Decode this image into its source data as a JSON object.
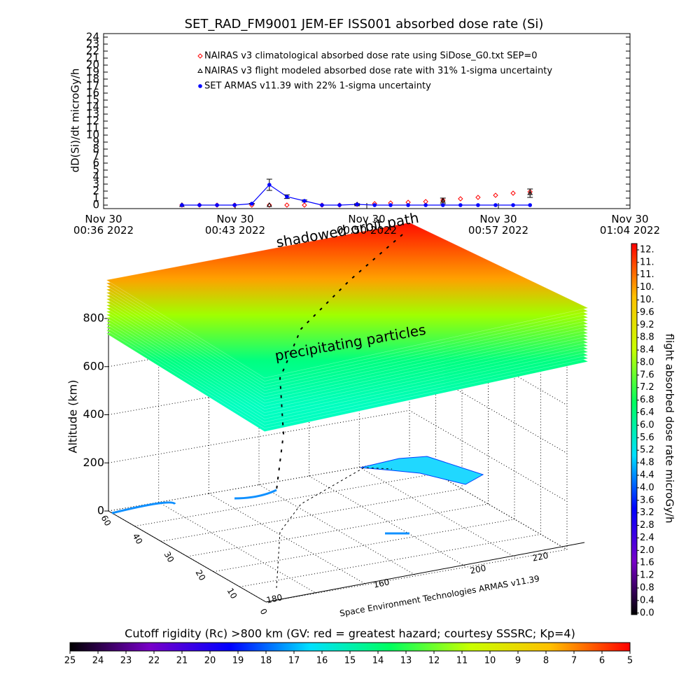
{
  "chart_data": [
    {
      "type": "line",
      "title": "SET_RAD_FM9001  JEM-EF ISS001 absorbed dose rate (Si)",
      "ylabel": "dD(Si)/dt microGy/h",
      "xlim": [
        "2022-11-30T00:36:00",
        "2022-11-30T01:04:00"
      ],
      "xticks": [
        {
          "value": "2022-11-30T00:36:00",
          "label": "Nov 30\n00:36 2022"
        },
        {
          "value": "2022-11-30T00:43:00",
          "label": "Nov 30\n00:43 2022"
        },
        {
          "value": "2022-11-30T00:50:00",
          "label": "Nov 30\n00:50 2022"
        },
        {
          "value": "2022-11-30T00:57:00",
          "label": "Nov 30\n00:57 2022"
        },
        {
          "value": "2022-11-30T01:04:00",
          "label": "Nov 30\n01:04 2022"
        }
      ],
      "ylim": [
        -0.5,
        24.5
      ],
      "yticks": [
        0,
        1,
        2,
        3,
        4,
        5,
        6,
        7,
        8,
        9,
        10,
        11,
        12,
        13,
        14,
        15,
        16,
        17,
        18,
        19,
        20,
        21,
        22,
        23,
        24
      ],
      "series": [
        {
          "name": "NAIRAS v3 climatological absorbed dose rate using SiDose_G0.txt SEP=0",
          "color": "#ff0000",
          "marker": "diamond",
          "x": [
            "2022-11-30T00:40:10",
            "2022-11-30T00:41:06",
            "2022-11-30T00:42:02",
            "2022-11-30T00:42:58",
            "2022-11-30T00:43:53",
            "2022-11-30T00:44:49",
            "2022-11-30T00:45:45",
            "2022-11-30T00:46:41",
            "2022-11-30T00:47:37",
            "2022-11-30T00:48:33",
            "2022-11-30T00:49:29",
            "2022-11-30T00:50:25",
            "2022-11-30T00:51:16",
            "2022-11-30T00:52:12",
            "2022-11-30T00:53:08",
            "2022-11-30T00:54:03",
            "2022-11-30T00:54:59",
            "2022-11-30T00:55:55",
            "2022-11-30T00:56:51",
            "2022-11-30T00:57:47",
            "2022-11-30T00:58:41"
          ],
          "values": [
            0,
            0,
            0,
            0,
            0,
            0,
            0,
            0,
            0,
            0,
            0.1,
            0.2,
            0.3,
            0.4,
            0.5,
            0.7,
            0.9,
            1.1,
            1.4,
            1.7,
            1.9
          ]
        },
        {
          "name": "NAIRAS v3 flight modeled absorbed dose rate with 31% 1-sigma uncertainty",
          "color": "#000000",
          "marker": "triangle",
          "x": [
            "2022-11-30T00:40:10",
            "2022-11-30T00:44:49",
            "2022-11-30T00:49:29",
            "2022-11-30T00:54:03",
            "2022-11-30T00:58:41"
          ],
          "values": [
            0,
            0,
            0.1,
            0.6,
            1.7
          ],
          "errors": [
            0,
            0,
            0.1,
            0.4,
            0.6
          ]
        },
        {
          "name": "SET ARMAS v11.39 with 22% 1-sigma uncertainty",
          "color": "#0000ff",
          "marker": "circle",
          "x": [
            "2022-11-30T00:40:10",
            "2022-11-30T00:41:06",
            "2022-11-30T00:42:02",
            "2022-11-30T00:42:58",
            "2022-11-30T00:43:53",
            "2022-11-30T00:44:49",
            "2022-11-30T00:45:45",
            "2022-11-30T00:46:41",
            "2022-11-30T00:47:37",
            "2022-11-30T00:48:33",
            "2022-11-30T00:49:29",
            "2022-11-30T00:50:25",
            "2022-11-30T00:51:16",
            "2022-11-30T00:52:12",
            "2022-11-30T00:53:08",
            "2022-11-30T00:54:03",
            "2022-11-30T00:54:59",
            "2022-11-30T00:55:55",
            "2022-11-30T00:56:51",
            "2022-11-30T00:57:47",
            "2022-11-30T00:58:41"
          ],
          "values": [
            0,
            0,
            0,
            0,
            0.2,
            2.9,
            1.2,
            0.6,
            0,
            0,
            0.1,
            0,
            0,
            0,
            0,
            0,
            0,
            0,
            0,
            0,
            0
          ],
          "errors": [
            0,
            0,
            0,
            0,
            0.04,
            0.8,
            0.26,
            0.13,
            0,
            0,
            0.1,
            0,
            0,
            0,
            0,
            0,
            0,
            0,
            0,
            0,
            0
          ]
        }
      ]
    },
    {
      "type": "surface3d",
      "zlabel": "Altitude (km)",
      "zlim": [
        0,
        800
      ],
      "zticks": [
        0,
        200,
        400,
        600,
        800
      ],
      "lat_labels": [
        "60",
        "40",
        "30",
        "20",
        "10",
        "0"
      ],
      "lon_labels": [
        "180",
        "160",
        "200",
        "220"
      ],
      "annotations": [
        "shadowed orbit path",
        "precipitating particles"
      ],
      "caption": "Space Environment Technologies ARMAS v11.39"
    },
    {
      "type": "colorbar",
      "orientation": "vertical",
      "label": "flight absorbed dose rate microGy/h",
      "colormap": [
        "#000000",
        "#7800c8",
        "#0000ff",
        "#00e0ff",
        "#00ff60",
        "#c8ff00",
        "#ffc000",
        "#ff0000"
      ],
      "lim": [
        -0.05,
        11.8
      ],
      "ticks": [
        {
          "value": 0,
          "label": "0.0"
        },
        0.4,
        0.8,
        1.2,
        1.6,
        {
          "value": 2,
          "label": "2.0"
        },
        2.4,
        2.8,
        3.2,
        3.6,
        {
          "value": 4,
          "label": "4.0"
        },
        4.4,
        4.8,
        5.2,
        5.6,
        {
          "value": 6,
          "label": "6.0"
        },
        6.4,
        6.8,
        7.2,
        7.6,
        {
          "value": 8,
          "label": "8.0"
        },
        8.4,
        8.8,
        9.2,
        9.6,
        {
          "value": 10,
          "label": "10."
        },
        {
          "value": 10.4,
          "label": "10."
        },
        {
          "value": 10.8,
          "label": "11."
        },
        {
          "value": 11.2,
          "label": "11."
        },
        {
          "value": 11.6,
          "label": "12."
        }
      ]
    },
    {
      "type": "colorbar",
      "orientation": "horizontal",
      "title": "Cutoff rigidity (Rc) >800 km (GV: red = greatest hazard; courtesy SSSRC; Kp=4)",
      "colormap": [
        "#000000",
        "#7800c8",
        "#0000ff",
        "#00e0ff",
        "#00ff60",
        "#c8ff00",
        "#ffc000",
        "#ff0000"
      ],
      "lim": [
        25,
        5
      ],
      "ticks": [
        25,
        24,
        23,
        22,
        21,
        20,
        19,
        18,
        17,
        16,
        15,
        14,
        13,
        12,
        11,
        10,
        9,
        8,
        7,
        6,
        5
      ]
    }
  ]
}
